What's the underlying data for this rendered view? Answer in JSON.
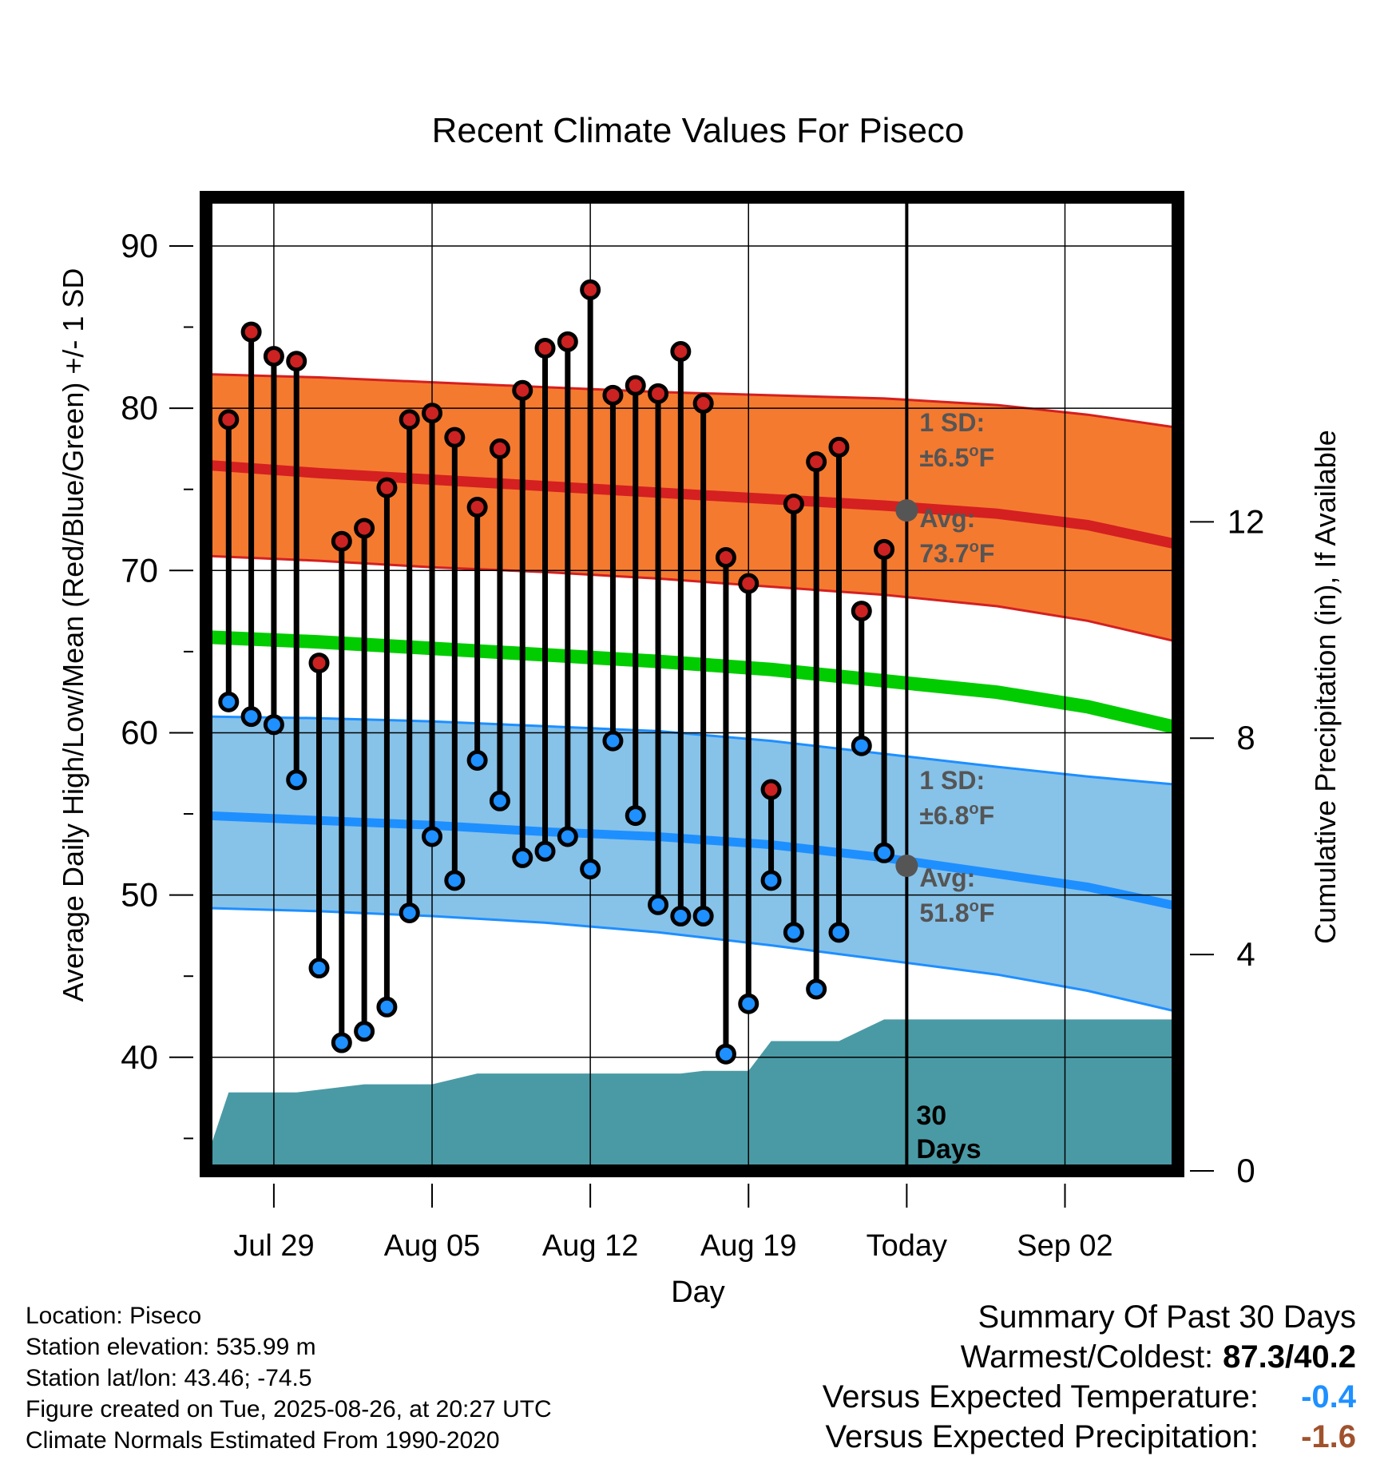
{
  "chart_data": {
    "type": "line",
    "title": "Recent Climate Values For Piseco",
    "xlabel": "Day",
    "ylabel": "Average Daily High/Low/Mean (Red/Blue/Green) +/- 1 SD",
    "y2label": "Cumulative Precipitation (in), If Available",
    "ylim": [
      33,
      93
    ],
    "y2lim": [
      0,
      18
    ],
    "xlim": [
      -33,
      10
    ],
    "x_ticks": [
      {
        "day": -30,
        "label": "Jul 29"
      },
      {
        "day": -23,
        "label": "Aug 05"
      },
      {
        "day": -16,
        "label": "Aug 12"
      },
      {
        "day": -9,
        "label": "Aug 19"
      },
      {
        "day": -2,
        "label": "Today"
      },
      {
        "day": 5,
        "label": "Sep 02"
      }
    ],
    "y_ticks": [
      40,
      50,
      60,
      70,
      80,
      90
    ],
    "y2_ticks": [
      0,
      4,
      8,
      12
    ],
    "grid": true,
    "today_day": -2,
    "days": [
      -32,
      -31,
      -30,
      -29,
      -28,
      -27,
      -26,
      -25,
      -24,
      -23,
      -22,
      -21,
      -20,
      -19,
      -18,
      -17,
      -16,
      -15,
      -14,
      -13,
      -12,
      -11,
      -10,
      -9,
      -8,
      -7,
      -6,
      -5,
      -4,
      -3
    ],
    "series": [
      {
        "name": "High",
        "color": "#cc2222",
        "values": [
          79.3,
          84.7,
          83.2,
          82.9,
          64.3,
          71.8,
          72.6,
          75.1,
          79.3,
          79.7,
          78.2,
          73.9,
          77.5,
          81.1,
          83.7,
          84.1,
          87.3,
          80.8,
          81.4,
          80.9,
          83.5,
          80.3,
          70.8,
          69.2,
          56.5,
          74.1,
          76.7,
          77.6,
          67.5,
          71.3
        ]
      },
      {
        "name": "Low",
        "color": "#1e90ff",
        "values": [
          61.9,
          61.0,
          60.5,
          57.1,
          45.5,
          40.9,
          41.6,
          43.1,
          48.9,
          53.6,
          50.9,
          58.3,
          55.8,
          52.3,
          52.7,
          53.6,
          51.6,
          59.5,
          54.9,
          49.4,
          48.7,
          48.7,
          40.2,
          43.3,
          50.9,
          47.7,
          44.2,
          47.7,
          59.2,
          52.6
        ]
      }
    ],
    "normals": {
      "x": [
        -33,
        -28,
        -23,
        -18,
        -13,
        -8,
        -3,
        2,
        6,
        10
      ],
      "high_mean": [
        76.5,
        76.0,
        75.6,
        75.2,
        74.8,
        74.4,
        74.0,
        73.5,
        72.8,
        71.6
      ],
      "high_upper": [
        82.1,
        81.9,
        81.6,
        81.3,
        81.0,
        80.8,
        80.6,
        80.2,
        79.6,
        78.8
      ],
      "high_lower": [
        70.9,
        70.6,
        70.2,
        69.9,
        69.5,
        69.0,
        68.5,
        67.8,
        66.9,
        65.6
      ],
      "mean": [
        65.9,
        65.6,
        65.2,
        64.8,
        64.4,
        63.9,
        63.2,
        62.5,
        61.6,
        60.3
      ],
      "low_mean": [
        54.9,
        54.6,
        54.3,
        53.9,
        53.6,
        53.1,
        52.3,
        51.3,
        50.5,
        49.3
      ],
      "low_upper": [
        61.0,
        60.9,
        60.7,
        60.4,
        60.1,
        59.5,
        58.7,
        57.9,
        57.3,
        56.8
      ],
      "low_lower": [
        49.2,
        49.0,
        48.7,
        48.3,
        47.7,
        46.9,
        46.0,
        45.1,
        44.1,
        42.8
      ]
    },
    "precip": {
      "x": [
        -33,
        -32,
        -31,
        -30,
        -29,
        -26,
        -25,
        -24,
        -23,
        -22,
        -21,
        -14,
        -13,
        -12,
        -11,
        -10,
        -9,
        -8,
        -7,
        -6,
        -5,
        -4,
        -3,
        -2,
        10
      ],
      "y": [
        0.2,
        1.45,
        1.45,
        1.45,
        1.45,
        1.6,
        1.6,
        1.6,
        1.6,
        1.7,
        1.8,
        1.8,
        1.8,
        1.8,
        1.85,
        1.85,
        1.85,
        2.4,
        2.4,
        2.4,
        2.4,
        2.6,
        2.8,
        2.8,
        2.8
      ]
    },
    "annotations": {
      "high_sd_label": "1 SD:",
      "high_sd_value": "±6.5",
      "high_avg_label": "Avg:",
      "high_avg_value": "73.7",
      "low_sd_label": "1 SD:",
      "low_sd_value": "±6.8",
      "low_avg_label": "Avg:",
      "low_avg_value": "51.8",
      "high_avg_temp": 73.7,
      "low_avg_temp": 51.8,
      "degree_symbol": "o",
      "unit_letter": "F",
      "window_count": "30",
      "window_unit": "Days"
    },
    "colors": {
      "high_band": "#f47a30",
      "high_edge": "#d42020",
      "high_mean_line": "#d42020",
      "low_band": "#87c2e8",
      "low_edge": "#1e8fff",
      "low_mean_line": "#1e8fff",
      "mean_line": "#00cc00",
      "precip_fill": "#4a9aa5",
      "annotation_text": "#555555",
      "high_point": "#cc2222",
      "low_point": "#1e90ff"
    }
  },
  "footer": {
    "location": "Location: Piseco",
    "elevation": "Station elevation: 535.99 m",
    "latlon": "Station lat/lon: 43.46; -74.5",
    "created": "Figure created on Tue, 2025-08-26, at 20:27 UTC",
    "normals": "Climate Normals Estimated From 1990-2020"
  },
  "summary": {
    "title": "Summary Of Past 30 Days",
    "warmest_label": "Warmest/Coldest:",
    "warmest_value": "87.3/40.2",
    "temp_label": "Versus Expected Temperature:",
    "temp_value": "-0.4",
    "temp_color": "#1e90ff",
    "precip_label": "Versus Expected Precipitation:",
    "precip_value": "-1.6",
    "precip_color": "#a0522d"
  }
}
